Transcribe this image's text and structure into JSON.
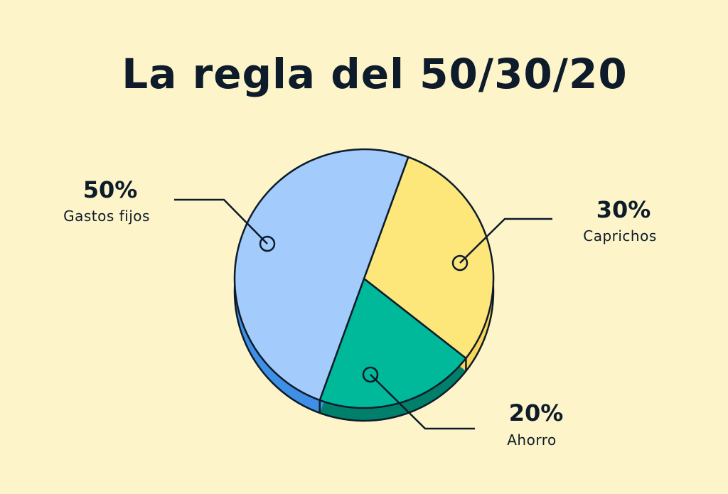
{
  "chart_data": {
    "type": "pie",
    "title": "La regla del 50/30/20",
    "slices": [
      {
        "label": "Gastos fijos",
        "value": 50,
        "value_label": "50%",
        "color": "#a3cbfc",
        "side_color": "#3f8fe6"
      },
      {
        "label": "Caprichos",
        "value": 30,
        "value_label": "30%",
        "color": "#fde67a",
        "side_color": "#fbd55a"
      },
      {
        "label": "Ahorro",
        "value": 20,
        "value_label": "20%",
        "color": "#00b99a",
        "side_color": "#00806a"
      }
    ],
    "style": "3d",
    "legend": "none"
  },
  "colors": {
    "background": "#fdf5c9",
    "ink": "#0d1b2a"
  }
}
